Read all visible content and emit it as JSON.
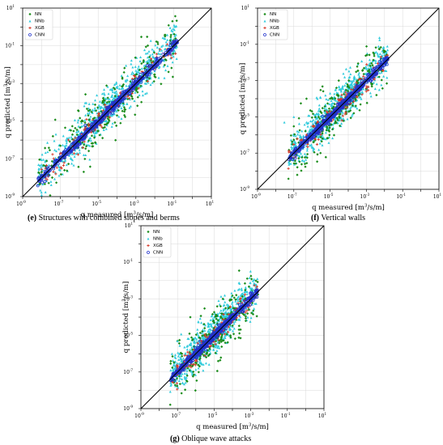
{
  "colors": {
    "NN": "#1a8c1a",
    "NNb": "#33ccdd",
    "XGB": "#d63a2a",
    "CNN": "#2233cc",
    "diagonal": "#000000"
  },
  "chart_data": [
    {
      "type": "scatter",
      "panel": "e",
      "caption_letter": "(e)",
      "caption_text": " Structures with combined slopes and berms",
      "xlabel_prefix": "q measured [m",
      "xlabel_sup": "3",
      "xlabel_suffix": "/s/m]",
      "ylabel_prefix": "q predicted [m",
      "ylabel_sup": "3",
      "ylabel_suffix": "/s/m]",
      "scale": "log",
      "xlim": [
        1e-09,
        10
      ],
      "ylim": [
        1e-09,
        10
      ],
      "tick_labels": [
        "10",
        "10",
        "10",
        "10",
        "10",
        "10"
      ],
      "tick_exponents": [
        "-9",
        "-7",
        "-5",
        "-3",
        "-1",
        "1"
      ],
      "legend": [
        "NN",
        "NNb",
        "XGB",
        "CNN"
      ],
      "legend_position": "top-left",
      "diagonal": true,
      "series": [
        {
          "name": "NN",
          "x": [
            1e-08,
            1e-07,
            5e-07,
            1e-06,
            3e-06,
            1e-05,
            3e-05,
            0.0001,
            0.001,
            0.01,
            0.1
          ],
          "y": [
            2e-08,
            5e-07,
            3e-06,
            8e-07,
            2e-05,
            3e-06,
            0.0001,
            2e-05,
            0.0005,
            0.003,
            0.1
          ]
        },
        {
          "name": "NNb",
          "x": [
            1e-08,
            5e-08,
            2e-07,
            1e-06,
            5e-06,
            2e-05,
            0.0001,
            0.0005,
            0.002,
            0.01,
            0.1
          ],
          "y": [
            5e-08,
            3e-07,
            1e-06,
            2e-06,
            1e-05,
            5e-05,
            0.0002,
            0.001,
            0.003,
            0.02,
            0.05
          ]
        },
        {
          "name": "XGB",
          "x": [
            1e-07,
            5e-07,
            2e-06,
            1e-05,
            5e-05
          ],
          "y": [
            2e-07,
            1e-06,
            4e-06,
            2e-05,
            6e-05
          ]
        },
        {
          "name": "CNN",
          "x": [
            1e-08,
            1e-07,
            1e-06,
            1e-05,
            0.0001,
            0.001,
            0.01,
            0.1
          ],
          "y": [
            1.2e-08,
            1e-07,
            1.1e-06,
            9e-06,
            0.00011,
            0.001,
            0.011,
            0.1
          ]
        }
      ]
    },
    {
      "type": "scatter",
      "panel": "f",
      "caption_letter": "(f)",
      "caption_text": " Vertical walls",
      "xlabel_prefix": "q measured [m",
      "xlabel_sup": "3",
      "xlabel_suffix": "/s/m]",
      "ylabel_prefix": "q predicted [m",
      "ylabel_sup": "3",
      "ylabel_suffix": "/s/m]",
      "scale": "log",
      "xlim": [
        1e-09,
        10
      ],
      "ylim": [
        1e-09,
        10
      ],
      "tick_labels": [
        "10",
        "10",
        "10",
        "10",
        "10",
        "10"
      ],
      "tick_exponents": [
        "-9",
        "-7",
        "-5",
        "-3",
        "-1",
        "1"
      ],
      "legend": [
        "NN",
        "NNb",
        "XGB",
        "CNN"
      ],
      "legend_position": "top-left",
      "diagonal": true,
      "series": [
        {
          "name": "NN",
          "x": [
            1e-07,
            5e-07,
            1e-06,
            3e-06,
            1e-05,
            3e-05,
            0.0001
          ],
          "y": [
            3e-06,
            0.0001,
            2e-05,
            0.0003,
            0.0001,
            0.001,
            0.0005
          ]
        },
        {
          "name": "NNb",
          "x": [
            3e-08,
            1e-07,
            5e-07,
            2e-06,
            1e-05,
            5e-05,
            0.0002,
            0.001
          ],
          "y": [
            5e-06,
            1e-05,
            5e-06,
            0.0001,
            0.0002,
            0.0005,
            0.001,
            0.005
          ]
        },
        {
          "name": "XGB",
          "x": [
            1e-07,
            5e-07,
            2e-06,
            1e-05
          ],
          "y": [
            3e-07,
            1e-06,
            5e-06,
            2e-05
          ]
        },
        {
          "name": "CNN",
          "x": [
            1e-07,
            1e-06,
            1e-05,
            0.0001,
            0.001,
            0.01
          ],
          "y": [
            1e-07,
            1.1e-06,
            9e-06,
            0.0001,
            0.0011,
            0.01
          ]
        }
      ]
    },
    {
      "type": "scatter",
      "panel": "g",
      "caption_letter": "(g)",
      "caption_text": " Oblique wave attacks",
      "xlabel_prefix": "q measured [m",
      "xlabel_sup": "3",
      "xlabel_suffix": "/s/m]",
      "ylabel_prefix": "q predicted [m",
      "ylabel_sup": "3",
      "ylabel_suffix": "/s/m]",
      "scale": "log",
      "xlim": [
        1e-09,
        10
      ],
      "ylim": [
        1e-09,
        10
      ],
      "tick_labels": [
        "10",
        "10",
        "10",
        "10",
        "10",
        "10"
      ],
      "tick_exponents": [
        "-9",
        "-7",
        "-5",
        "-3",
        "-1",
        "1"
      ],
      "legend": [
        "NN",
        "NNb",
        "XGB",
        "CNN"
      ],
      "legend_position": "top-left",
      "diagonal": true,
      "series": [
        {
          "name": "NN",
          "x": [
            1e-07,
            5e-07,
            1e-06,
            3e-06,
            1e-05,
            3e-05,
            0.0001,
            0.0005
          ],
          "y": [
            5e-06,
            0.0001,
            1e-06,
            0.0003,
            2e-05,
            0.001,
            0.0001,
            0.001
          ]
        },
        {
          "name": "NNb",
          "x": [
            5e-08,
            1e-07,
            5e-07,
            2e-06,
            1e-05,
            5e-05,
            0.0002,
            0.001
          ],
          "y": [
            1e-06,
            5e-06,
            3e-06,
            5e-05,
            0.0001,
            0.0005,
            0.0008,
            0.003
          ]
        },
        {
          "name": "XGB",
          "x": [
            1e-07,
            5e-07,
            2e-06,
            1e-05
          ],
          "y": [
            2e-07,
            1e-06,
            5e-06,
            2e-05
          ]
        },
        {
          "name": "CNN",
          "x": [
            1e-07,
            1e-06,
            1e-05,
            0.0001,
            0.001
          ],
          "y": [
            1e-07,
            1.1e-06,
            9e-06,
            0.00011,
            0.001
          ]
        }
      ]
    }
  ]
}
